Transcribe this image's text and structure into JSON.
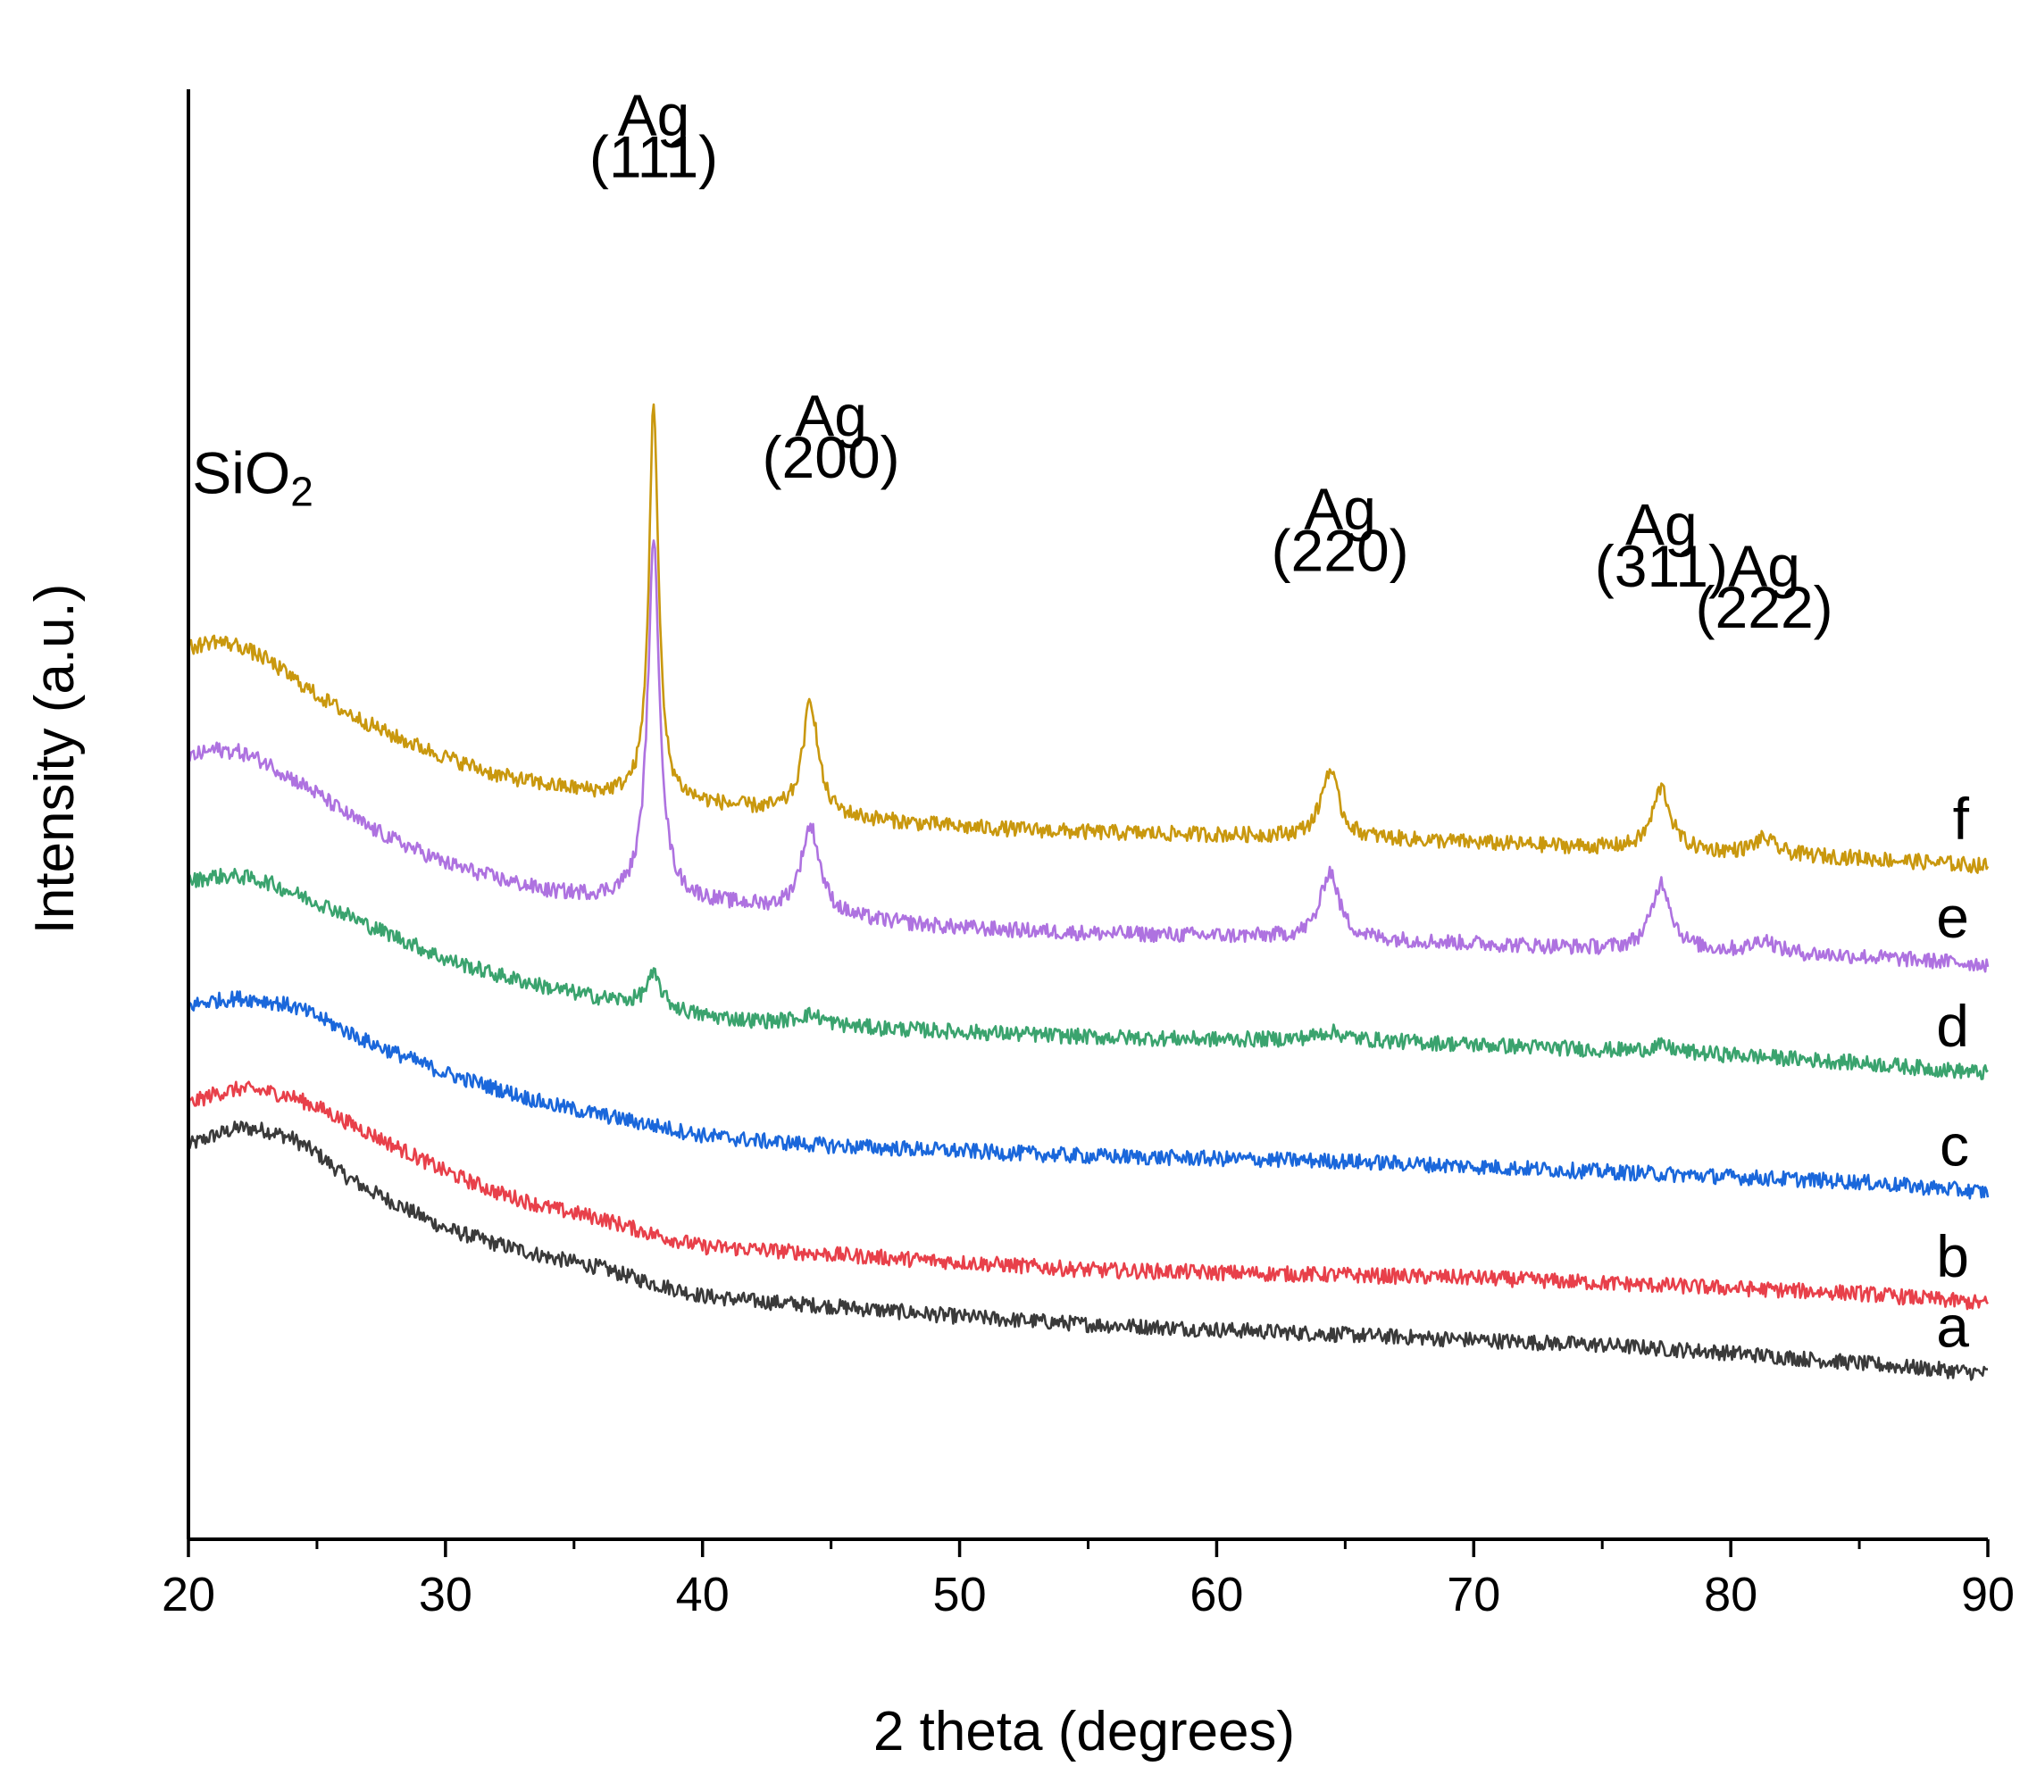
{
  "chart_data": {
    "type": "line",
    "xlabel": "2 theta (degrees)",
    "ylabel": "Intensity (a.u.)",
    "xlim": [
      20,
      90
    ],
    "x_major_ticks": [
      20,
      30,
      40,
      50,
      60,
      70,
      80,
      90
    ],
    "x_minor_step": 5,
    "y_tick_labels": false,
    "grid": false,
    "legend": "none",
    "noise": 1.5,
    "series": [
      {
        "label": "a",
        "color": "#3a3a3a",
        "offset": 0,
        "points": [
          [
            20,
            26
          ],
          [
            21,
            28
          ],
          [
            22,
            29.5
          ],
          [
            23,
            29
          ],
          [
            24,
            27.5
          ],
          [
            25,
            24.5
          ],
          [
            26,
            20.5
          ],
          [
            27,
            17.5
          ],
          [
            28,
            15
          ],
          [
            30,
            10
          ],
          [
            32,
            7
          ],
          [
            34,
            4.5
          ],
          [
            36,
            2.5
          ],
          [
            38,
            -0.5
          ],
          [
            40,
            -3
          ],
          [
            42,
            -4
          ],
          [
            45,
            -5
          ],
          [
            50,
            -7
          ],
          [
            55,
            -8.5
          ],
          [
            60,
            -9.5
          ],
          [
            65,
            -10.5
          ],
          [
            70,
            -11.5
          ],
          [
            75,
            -12.5
          ],
          [
            80,
            -14
          ],
          [
            85,
            -16
          ],
          [
            90,
            -18
          ]
        ],
        "peaks": []
      },
      {
        "label": "b",
        "color": "#e8404a",
        "offset": 27,
        "points": [
          [
            20,
            7
          ],
          [
            21,
            9
          ],
          [
            22,
            10
          ],
          [
            23,
            9.5
          ],
          [
            24,
            8.5
          ],
          [
            25,
            6.5
          ],
          [
            26,
            4
          ],
          [
            27,
            1.5
          ],
          [
            28,
            -1
          ],
          [
            30,
            -6
          ],
          [
            32,
            -10
          ],
          [
            34,
            -13
          ],
          [
            36,
            -15
          ],
          [
            38,
            -18
          ],
          [
            40,
            -20.5
          ],
          [
            42,
            -21
          ],
          [
            45,
            -22
          ],
          [
            50,
            -23.5
          ],
          [
            55,
            -25
          ],
          [
            60,
            -25.5
          ],
          [
            65,
            -26
          ],
          [
            70,
            -26.5
          ],
          [
            75,
            -27.5
          ],
          [
            80,
            -28.5
          ],
          [
            85,
            -29.5
          ],
          [
            90,
            -31.5
          ]
        ],
        "peaks": []
      },
      {
        "label": "c",
        "color": "#1a67db",
        "offset": 58,
        "points": [
          [
            20,
            -5
          ],
          [
            21,
            -4
          ],
          [
            22,
            -3.5
          ],
          [
            23,
            -4
          ],
          [
            24,
            -5
          ],
          [
            25,
            -7
          ],
          [
            26,
            -9.5
          ],
          [
            27,
            -12
          ],
          [
            28,
            -14
          ],
          [
            30,
            -18
          ],
          [
            32,
            -21
          ],
          [
            34,
            -24
          ],
          [
            36,
            -26
          ],
          [
            38,
            -28
          ],
          [
            40,
            -30
          ],
          [
            42,
            -31
          ],
          [
            45,
            -32
          ],
          [
            50,
            -33
          ],
          [
            55,
            -34
          ],
          [
            60,
            -34.5
          ],
          [
            65,
            -35
          ],
          [
            70,
            -36
          ],
          [
            75,
            -37
          ],
          [
            80,
            -38
          ],
          [
            85,
            -39
          ],
          [
            90,
            -41
          ]
        ],
        "peaks": []
      },
      {
        "label": "d",
        "color": "#3aa36e",
        "offset": 78,
        "points": [
          [
            20,
            -1
          ],
          [
            21,
            0
          ],
          [
            22,
            0
          ],
          [
            23,
            -1
          ],
          [
            24,
            -3
          ],
          [
            25,
            -5
          ],
          [
            26,
            -7
          ],
          [
            27,
            -9.5
          ],
          [
            28,
            -11.5
          ],
          [
            30,
            -16
          ],
          [
            32,
            -19
          ],
          [
            34,
            -21.5
          ],
          [
            36,
            -23.5
          ],
          [
            38,
            -25
          ],
          [
            40,
            -27
          ],
          [
            42,
            -28
          ],
          [
            45,
            -29
          ],
          [
            50,
            -30
          ],
          [
            55,
            -31
          ],
          [
            60,
            -31.5
          ],
          [
            65,
            -31.5
          ],
          [
            70,
            -32.5
          ],
          [
            75,
            -33.5
          ],
          [
            80,
            -34.5
          ],
          [
            85,
            -36
          ],
          [
            90,
            -38
          ]
        ],
        "peaks": [
          [
            38.1,
            6,
            0.35
          ],
          [
            44.2,
            2,
            0.7
          ],
          [
            64.4,
            1.5,
            0.6
          ],
          [
            77.3,
            1.2,
            0.6
          ]
        ]
      },
      {
        "label": "e",
        "color": "#ae72e0",
        "offset": 107,
        "points": [
          [
            20,
            -6
          ],
          [
            21,
            -4.5
          ],
          [
            22,
            -5
          ],
          [
            23,
            -7
          ],
          [
            24,
            -10
          ],
          [
            25,
            -13
          ],
          [
            26,
            -16.5
          ],
          [
            27,
            -19.5
          ],
          [
            28,
            -22
          ],
          [
            30,
            -26.5
          ],
          [
            32,
            -29.5
          ],
          [
            34,
            -32
          ],
          [
            36,
            -33
          ],
          [
            38,
            -33
          ],
          [
            40,
            -34
          ],
          [
            42,
            -35
          ],
          [
            45,
            -37
          ],
          [
            50,
            -39
          ],
          [
            55,
            -40
          ],
          [
            60,
            -40.5
          ],
          [
            65,
            -41
          ],
          [
            70,
            -42
          ],
          [
            75,
            -43
          ],
          [
            80,
            -43.5
          ],
          [
            85,
            -44.5
          ],
          [
            90,
            -46
          ]
        ],
        "peaks": [
          [
            38.1,
            68,
            0.28
          ],
          [
            44.2,
            17,
            0.45
          ],
          [
            64.4,
            13,
            0.42
          ],
          [
            77.3,
            13,
            0.45
          ],
          [
            81.3,
            2.5,
            0.5
          ]
        ]
      },
      {
        "label": "f",
        "color": "#c9980e",
        "offset": 122,
        "points": [
          [
            20,
            0
          ],
          [
            21,
            1.5
          ],
          [
            22,
            0.5
          ],
          [
            23,
            -2
          ],
          [
            24,
            -5.5
          ],
          [
            25,
            -9
          ],
          [
            26,
            -12
          ],
          [
            27,
            -14.5
          ],
          [
            28,
            -17
          ],
          [
            30,
            -21
          ],
          [
            32,
            -24.5
          ],
          [
            34,
            -26.5
          ],
          [
            36,
            -28
          ],
          [
            38,
            -28.5
          ],
          [
            40,
            -30
          ],
          [
            42,
            -31
          ],
          [
            45,
            -32.5
          ],
          [
            50,
            -34.5
          ],
          [
            55,
            -35.5
          ],
          [
            60,
            -36
          ],
          [
            65,
            -36.5
          ],
          [
            70,
            -37.5
          ],
          [
            75,
            -38.5
          ],
          [
            80,
            -39.5
          ],
          [
            85,
            -40.5
          ],
          [
            90,
            -42
          ]
        ],
        "peaks": [
          [
            38.1,
            76,
            0.22
          ],
          [
            44.2,
            22,
            0.35
          ],
          [
            64.4,
            13,
            0.4
          ],
          [
            77.3,
            12,
            0.42
          ],
          [
            81.3,
            3,
            0.5
          ]
        ]
      }
    ],
    "annotations": [
      {
        "text": "SiO",
        "sub": "2",
        "x": 22.5,
        "y": 152
      },
      {
        "text": "Ag",
        "sub": "",
        "x": 38.1,
        "y": 221
      },
      {
        "text": "(111)",
        "sub": "",
        "x": 38.1,
        "y": 213
      },
      {
        "text": "Ag",
        "sub": "",
        "x": 45,
        "y": 163
      },
      {
        "text": "(200)",
        "sub": "",
        "x": 45,
        "y": 155
      },
      {
        "text": "Ag",
        "sub": "",
        "x": 64.8,
        "y": 145
      },
      {
        "text": "(220)",
        "sub": "",
        "x": 64.8,
        "y": 137
      },
      {
        "text": "Ag",
        "sub": "",
        "x": 77.3,
        "y": 142
      },
      {
        "text": "(311)",
        "sub": "",
        "x": 77.3,
        "y": 134
      },
      {
        "text": "Ag",
        "sub": "",
        "x": 81.3,
        "y": 134
      },
      {
        "text": "(222)",
        "sub": "",
        "x": 81.3,
        "y": 126
      }
    ]
  }
}
